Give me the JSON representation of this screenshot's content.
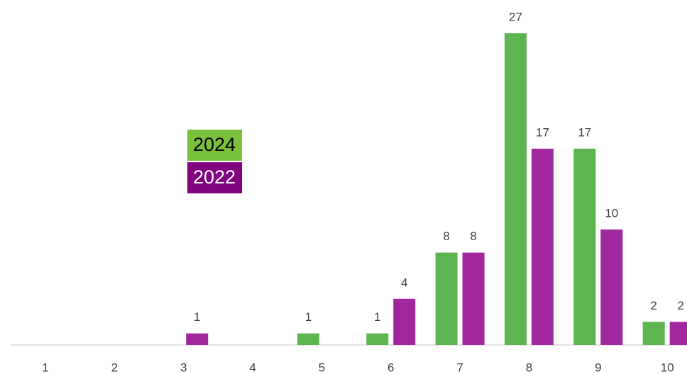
{
  "chart_data": {
    "type": "bar",
    "categories": [
      "1",
      "2",
      "3",
      "4",
      "5",
      "6",
      "7",
      "8",
      "9",
      "10"
    ],
    "series": [
      {
        "name": "2024",
        "color": "#5cb54f",
        "values": [
          null,
          null,
          null,
          null,
          1,
          1,
          8,
          27,
          17,
          2
        ]
      },
      {
        "name": "2022",
        "color": "#a1279f",
        "values": [
          null,
          null,
          1,
          null,
          null,
          4,
          8,
          17,
          10,
          2
        ]
      }
    ],
    "legend_colors": [
      "#7ac13b",
      "#82037f"
    ]
  }
}
